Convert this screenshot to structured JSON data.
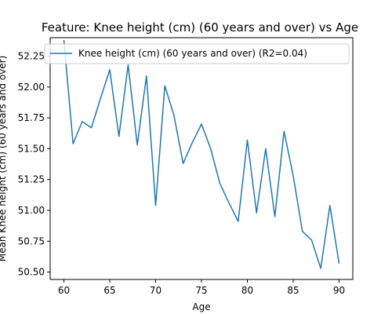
{
  "chart_data": {
    "type": "line",
    "title": "Feature: Knee height (cm) (60 years and over) vs Age",
    "xlabel": "Age",
    "ylabel": "Mean Knee height (cm) (60 years and over)",
    "xlim": [
      58.5,
      91.5
    ],
    "ylim": [
      50.44,
      52.4
    ],
    "xticks": [
      60,
      65,
      70,
      75,
      80,
      85,
      90
    ],
    "yticks": [
      "50.50",
      "50.75",
      "51.00",
      "51.25",
      "51.50",
      "51.75",
      "52.00",
      "52.25"
    ],
    "grid": false,
    "legend": "upper-left",
    "series": [
      {
        "name": "Knee height (cm) (60 years and over) (R2=0.04)",
        "color": "#1f77b4",
        "x": [
          60,
          61,
          62,
          63,
          64,
          65,
          66,
          67,
          68,
          69,
          70,
          71,
          72,
          73,
          74,
          75,
          76,
          77,
          78,
          79,
          80,
          81,
          82,
          83,
          84,
          85,
          86,
          87,
          88,
          89,
          90
        ],
        "y": [
          52.38,
          51.54,
          51.72,
          51.67,
          51.91,
          52.14,
          51.6,
          52.18,
          51.53,
          52.09,
          51.04,
          52.01,
          51.77,
          51.38,
          51.55,
          51.7,
          51.5,
          51.22,
          51.06,
          50.91,
          51.57,
          50.98,
          51.5,
          50.95,
          51.64,
          51.28,
          50.83,
          50.76,
          50.53,
          51.04,
          50.57
        ]
      }
    ]
  }
}
